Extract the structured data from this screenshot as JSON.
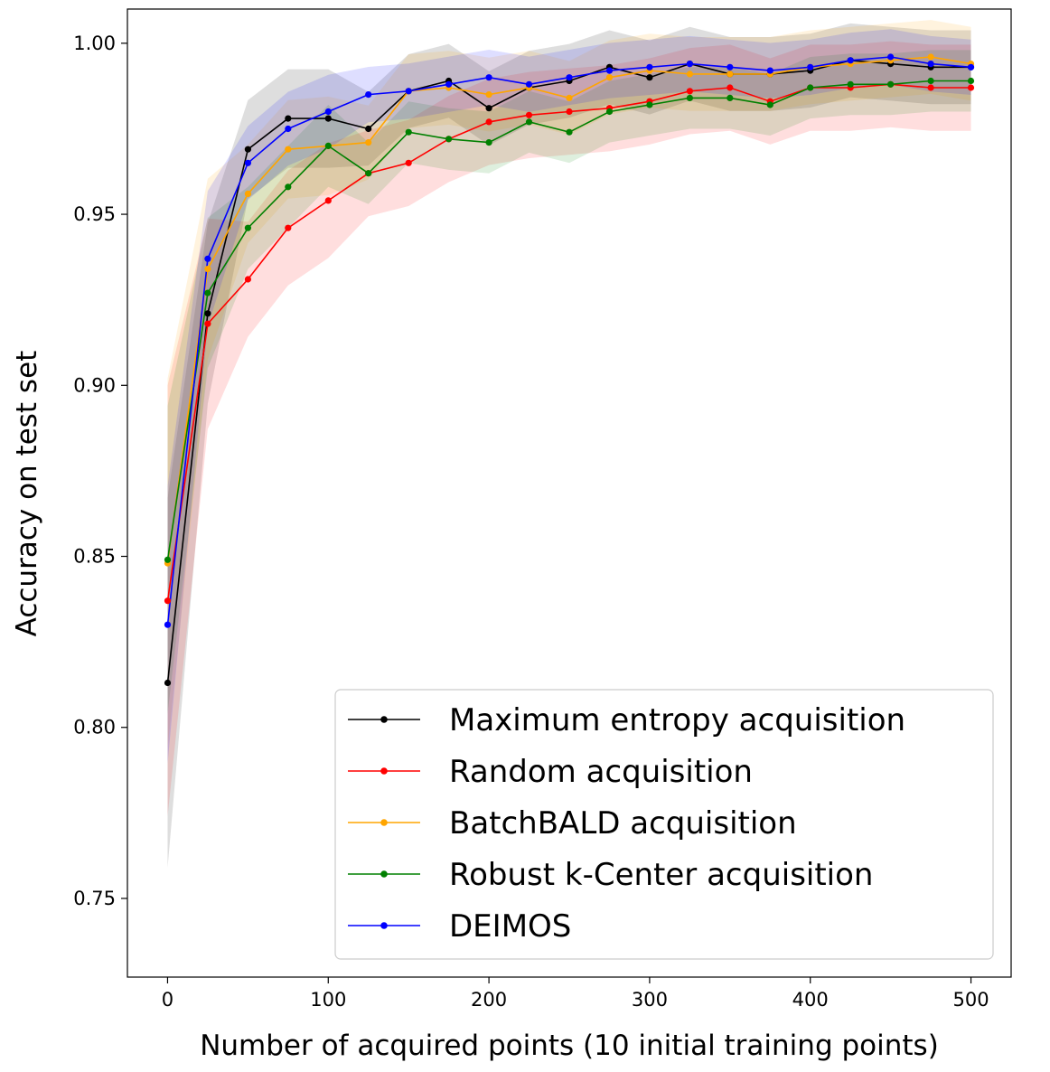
{
  "chart_data": {
    "type": "line",
    "title": "",
    "xlabel": "Number of acquired points (10 initial training points)",
    "ylabel": "Accuracy on test set",
    "xlim": [
      -25,
      525
    ],
    "ylim": [
      0.727,
      1.01
    ],
    "xticks": [
      0,
      100,
      200,
      300,
      400,
      500
    ],
    "xtick_labels": [
      "0",
      "100",
      "200",
      "300",
      "400",
      "500"
    ],
    "yticks": [
      0.75,
      0.8,
      0.85,
      0.9,
      0.95,
      1.0
    ],
    "ytick_labels": [
      "0.75",
      "0.80",
      "0.85",
      "0.90",
      "0.95",
      "1.00"
    ],
    "grid": false,
    "legend_position": "bottom-right",
    "x": [
      0,
      25,
      50,
      75,
      100,
      125,
      150,
      175,
      200,
      225,
      250,
      275,
      300,
      325,
      350,
      375,
      400,
      425,
      450,
      475,
      500
    ],
    "series": [
      {
        "name": "Maximum entropy acquisition",
        "color": "#000000",
        "values": [
          0.813,
          0.921,
          0.969,
          0.978,
          0.978,
          0.975,
          0.986,
          0.989,
          0.981,
          0.987,
          0.989,
          0.993,
          0.99,
          0.994,
          0.991,
          0.991,
          0.992,
          0.995,
          0.994,
          0.993,
          0.993
        ],
        "band": 0.012
      },
      {
        "name": "Random acquisition",
        "color": "#ff0000",
        "values": [
          0.837,
          0.918,
          0.931,
          0.946,
          0.954,
          0.962,
          0.965,
          0.972,
          0.977,
          0.979,
          0.98,
          0.981,
          0.983,
          0.986,
          0.987,
          0.983,
          0.987,
          0.987,
          0.988,
          0.987,
          0.987
        ],
        "band": 0.014
      },
      {
        "name": "BatchBALD acquisition",
        "color": "#ffa500",
        "values": [
          0.848,
          0.934,
          0.956,
          0.969,
          0.97,
          0.971,
          0.986,
          0.987,
          0.985,
          0.987,
          0.984,
          0.99,
          0.992,
          0.991,
          0.991,
          0.991,
          0.993,
          0.994,
          0.995,
          0.996,
          0.994
        ],
        "band": 0.012
      },
      {
        "name": "Robust k-Center acquisition",
        "color": "#008000",
        "values": [
          0.849,
          0.927,
          0.946,
          0.958,
          0.97,
          0.962,
          0.974,
          0.972,
          0.971,
          0.977,
          0.974,
          0.98,
          0.982,
          0.984,
          0.984,
          0.982,
          0.987,
          0.988,
          0.988,
          0.989,
          0.989
        ],
        "band": 0.01
      },
      {
        "name": "DEIMOS",
        "color": "#0000ff",
        "values": [
          0.83,
          0.937,
          0.965,
          0.975,
          0.98,
          0.985,
          0.986,
          0.988,
          0.99,
          0.988,
          0.99,
          0.992,
          0.993,
          0.994,
          0.993,
          0.992,
          0.993,
          0.995,
          0.996,
          0.994,
          0.993
        ],
        "band": 0.009
      }
    ]
  }
}
